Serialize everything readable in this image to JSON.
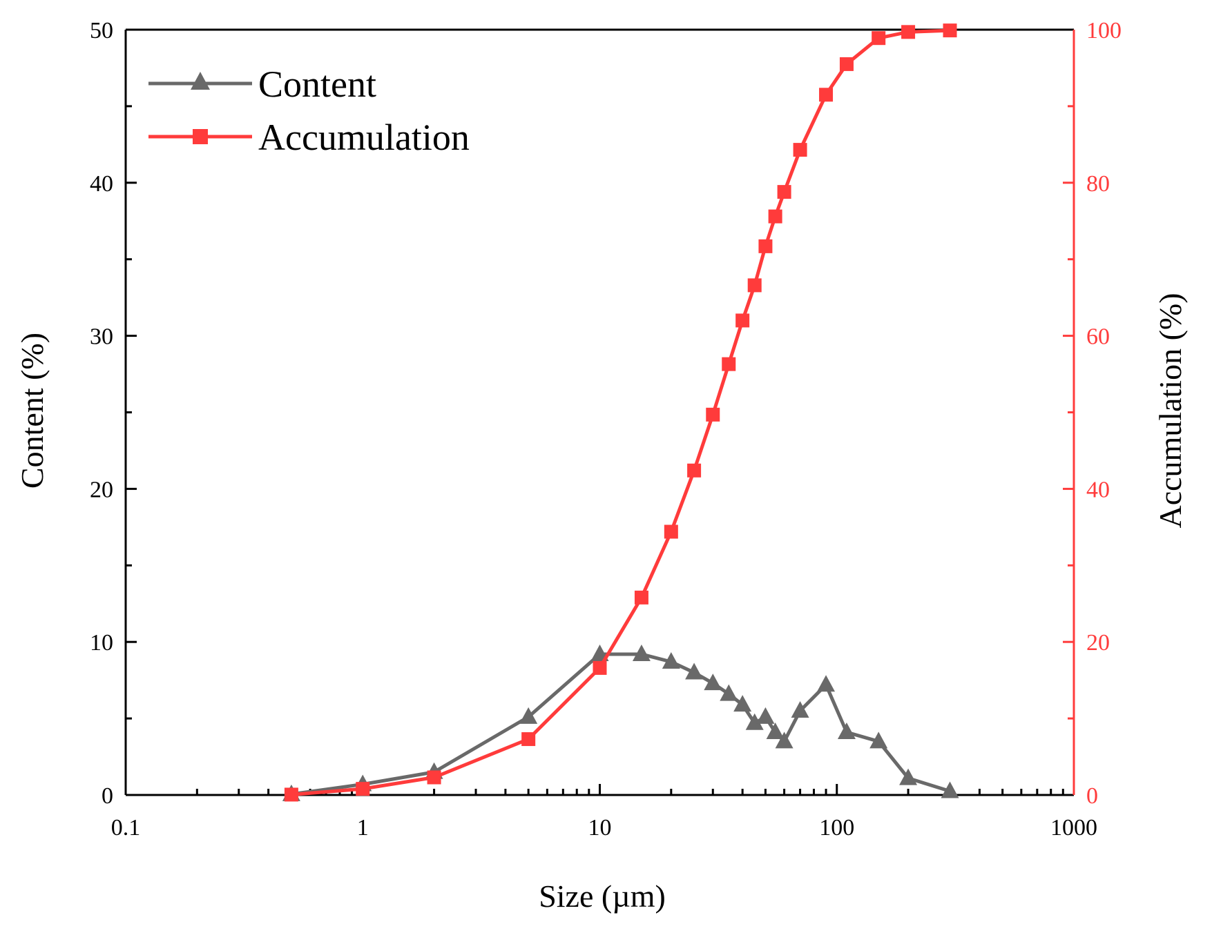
{
  "chart_data": {
    "type": "line",
    "title": "",
    "xlabel": "Size (µm)",
    "ylabel": "Content (%)",
    "y2label": "Accumulation (%)",
    "xscale": "log",
    "xlim": [
      0.1,
      1000
    ],
    "ylim": [
      0,
      50
    ],
    "y2lim": [
      0,
      100
    ],
    "x_ticks": [
      "0.1",
      "1",
      "10",
      "100",
      "1000"
    ],
    "y_ticks": [
      "0",
      "10",
      "20",
      "30",
      "40",
      "50"
    ],
    "y2_ticks": [
      "0",
      "20",
      "40",
      "60",
      "80",
      "100"
    ],
    "legend_position": "top-left",
    "colors": {
      "content": "#696969",
      "accumulation": "#ff3b3b",
      "axis": "#000000"
    },
    "series": [
      {
        "name": "Content",
        "axis": "left",
        "marker": "triangle",
        "x": [
          0.5,
          1,
          2,
          5,
          10,
          15,
          20,
          25,
          30,
          35,
          40,
          45,
          50,
          55,
          60,
          70,
          90,
          110,
          150,
          200,
          300
        ],
        "values": [
          0.05,
          0.7,
          1.5,
          5.1,
          9.2,
          9.2,
          8.7,
          8.0,
          7.3,
          6.6,
          5.9,
          4.7,
          5.1,
          4.1,
          3.5,
          5.5,
          7.2,
          4.1,
          3.5,
          1.1,
          0.25
        ]
      },
      {
        "name": "Accumulation",
        "axis": "right",
        "marker": "square",
        "x": [
          0.5,
          1,
          2,
          5,
          10,
          15,
          20,
          25,
          30,
          35,
          40,
          45,
          50,
          55,
          60,
          70,
          90,
          110,
          150,
          200,
          300
        ],
        "values": [
          0.05,
          0.8,
          2.3,
          7.3,
          16.6,
          25.8,
          34.4,
          42.4,
          49.7,
          56.3,
          62.0,
          66.6,
          71.7,
          75.6,
          78.8,
          84.3,
          91.5,
          95.5,
          98.9,
          99.7,
          99.9
        ]
      }
    ]
  }
}
